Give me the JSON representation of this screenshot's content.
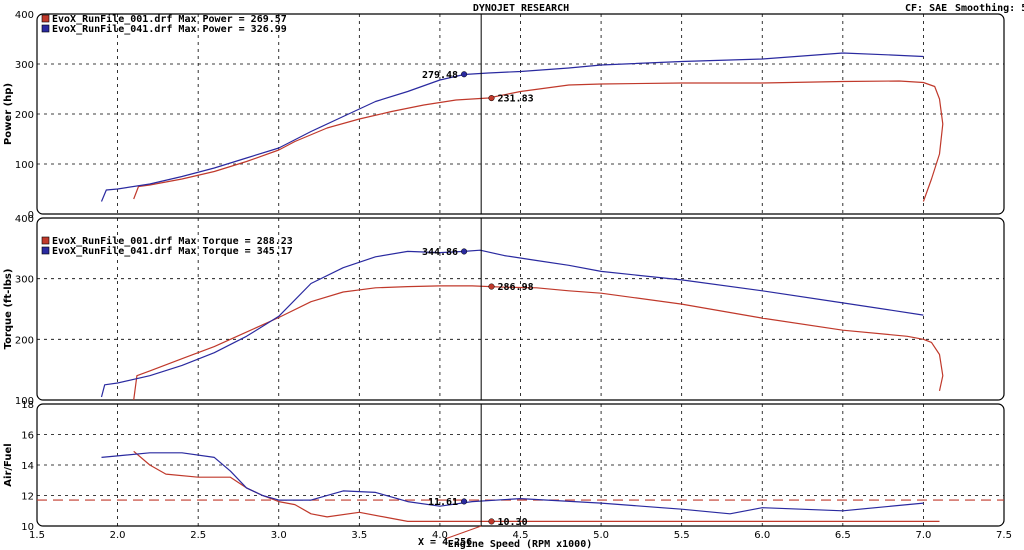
{
  "header": {
    "title": "DYNOJET RESEARCH",
    "cf": "CF: SAE",
    "smoothing": "Smoothing: 5"
  },
  "colors": {
    "run1": "#c0392b",
    "run2": "#2a2aa0"
  },
  "x_axis": {
    "label": "Engine Speed (RPM x1000)",
    "min": 1.5,
    "max": 7.5,
    "ticks": [
      "1.5",
      "2.0",
      "2.5",
      "3.0",
      "3.5",
      "4.0",
      "4.5",
      "5.0",
      "5.5",
      "6.0",
      "6.5",
      "7.0",
      "7.5"
    ]
  },
  "cursor": {
    "rpm": 4.256,
    "label": "X = 4.256"
  },
  "chart_data": [
    {
      "type": "line",
      "ylabel": "Power (hp)",
      "ylim": [
        0,
        400
      ],
      "yticks": [
        "0",
        "100",
        "200",
        "300",
        "400"
      ],
      "legend": [
        "EvoX_RunFile_001.drf Max Power = 269.57",
        "EvoX_RunFile_041.drf Max Power = 326.99"
      ],
      "markers": [
        {
          "series": 1,
          "x": 4.15,
          "y": 279.48,
          "label": "279.48"
        },
        {
          "series": 0,
          "x": 4.32,
          "y": 231.83,
          "label": "231.83"
        }
      ],
      "series": [
        {
          "name": "EvoX_RunFile_001.drf",
          "color": "run1",
          "x": [
            2.1,
            2.13,
            2.2,
            2.4,
            2.6,
            2.8,
            3.0,
            3.1,
            3.3,
            3.5,
            3.7,
            3.9,
            4.1,
            4.3,
            4.5,
            4.8,
            5.0,
            5.5,
            6.0,
            6.5,
            6.85,
            7.0,
            7.07,
            7.1,
            7.12,
            7.1,
            7.05,
            7.0
          ],
          "y": [
            30,
            55,
            58,
            70,
            85,
            105,
            128,
            145,
            172,
            190,
            205,
            218,
            228,
            232,
            245,
            258,
            260,
            262,
            262,
            265,
            266,
            263,
            255,
            230,
            180,
            120,
            70,
            25
          ]
        },
        {
          "name": "EvoX_RunFile_041.drf",
          "color": "run2",
          "x": [
            1.9,
            1.93,
            2.0,
            2.2,
            2.4,
            2.6,
            2.8,
            3.0,
            3.2,
            3.4,
            3.6,
            3.8,
            4.0,
            4.15,
            4.3,
            4.5,
            4.8,
            5.0,
            5.5,
            6.0,
            6.5,
            6.8,
            7.0
          ],
          "y": [
            25,
            48,
            50,
            60,
            75,
            92,
            112,
            132,
            165,
            195,
            225,
            245,
            268,
            279,
            282,
            285,
            292,
            298,
            305,
            310,
            322,
            318,
            315
          ]
        }
      ]
    },
    {
      "type": "line",
      "ylabel": "Torque (ft-lbs)",
      "ylim": [
        100,
        400
      ],
      "yticks": [
        "100",
        "200",
        "300",
        "400"
      ],
      "legend": [
        "EvoX_RunFile_001.drf Max Torque = 288.23",
        "EvoX_RunFile_041.drf Max Torque = 345.17"
      ],
      "markers": [
        {
          "series": 1,
          "x": 4.15,
          "y": 344.86,
          "label": "344.86"
        },
        {
          "series": 0,
          "x": 4.32,
          "y": 286.98,
          "label": "286.98"
        }
      ],
      "series": [
        {
          "name": "EvoX_RunFile_001.drf",
          "color": "run1",
          "x": [
            2.1,
            2.12,
            2.2,
            2.4,
            2.6,
            2.8,
            3.0,
            3.2,
            3.4,
            3.6,
            3.8,
            4.0,
            4.2,
            4.4,
            4.6,
            4.8,
            5.0,
            5.5,
            6.0,
            6.5,
            6.9,
            7.0,
            7.05,
            7.1,
            7.12,
            7.1
          ],
          "y": [
            100,
            140,
            148,
            168,
            188,
            212,
            236,
            262,
            278,
            285,
            287,
            288,
            288,
            286,
            285,
            280,
            276,
            258,
            235,
            215,
            205,
            200,
            195,
            175,
            140,
            115
          ]
        },
        {
          "name": "EvoX_RunFile_041.drf",
          "color": "run2",
          "x": [
            1.9,
            1.92,
            2.0,
            2.2,
            2.4,
            2.6,
            2.8,
            3.0,
            3.2,
            3.4,
            3.6,
            3.8,
            4.0,
            4.15,
            4.25,
            4.4,
            4.6,
            4.8,
            5.0,
            5.5,
            6.0,
            6.5,
            6.8,
            7.0
          ],
          "y": [
            105,
            125,
            128,
            140,
            157,
            178,
            205,
            238,
            292,
            318,
            336,
            345,
            343,
            345,
            347,
            338,
            330,
            322,
            312,
            298,
            280,
            260,
            248,
            240
          ]
        }
      ]
    },
    {
      "type": "line",
      "ylabel": "Air/Fuel",
      "ylim": [
        10,
        18
      ],
      "yticks": [
        "10",
        "12",
        "14",
        "16",
        "18"
      ],
      "legend": [],
      "reference_line": 11.7,
      "markers": [
        {
          "series": 1,
          "x": 4.15,
          "y": 11.61,
          "label": "11.61"
        },
        {
          "series": 0,
          "x": 4.32,
          "y": 10.3,
          "label": "10.30"
        }
      ],
      "series": [
        {
          "name": "EvoX_RunFile_001.drf",
          "color": "run1",
          "x": [
            2.1,
            2.2,
            2.3,
            2.5,
            2.7,
            2.8,
            2.9,
            3.0,
            3.1,
            3.2,
            3.3,
            3.5,
            3.7,
            3.8,
            4.0,
            4.5,
            5.0,
            5.5,
            6.0,
            6.5,
            7.0,
            7.1
          ],
          "y": [
            14.9,
            14.0,
            13.4,
            13.2,
            13.2,
            12.5,
            12.0,
            11.6,
            11.4,
            10.8,
            10.6,
            10.9,
            10.5,
            10.3,
            10.3,
            10.3,
            10.3,
            10.3,
            10.3,
            10.3,
            10.3,
            10.3
          ]
        },
        {
          "name": "EvoX_RunFile_041.drf",
          "color": "run2",
          "x": [
            1.9,
            2.0,
            2.2,
            2.4,
            2.6,
            2.7,
            2.8,
            2.9,
            3.0,
            3.2,
            3.4,
            3.6,
            3.8,
            4.0,
            4.2,
            4.5,
            5.0,
            5.5,
            5.8,
            6.0,
            6.5,
            7.0
          ],
          "y": [
            14.5,
            14.6,
            14.8,
            14.8,
            14.5,
            13.6,
            12.5,
            12.0,
            11.7,
            11.7,
            12.3,
            12.2,
            11.6,
            11.3,
            11.6,
            11.8,
            11.5,
            11.1,
            10.8,
            11.2,
            11.0,
            11.5
          ]
        }
      ]
    }
  ]
}
